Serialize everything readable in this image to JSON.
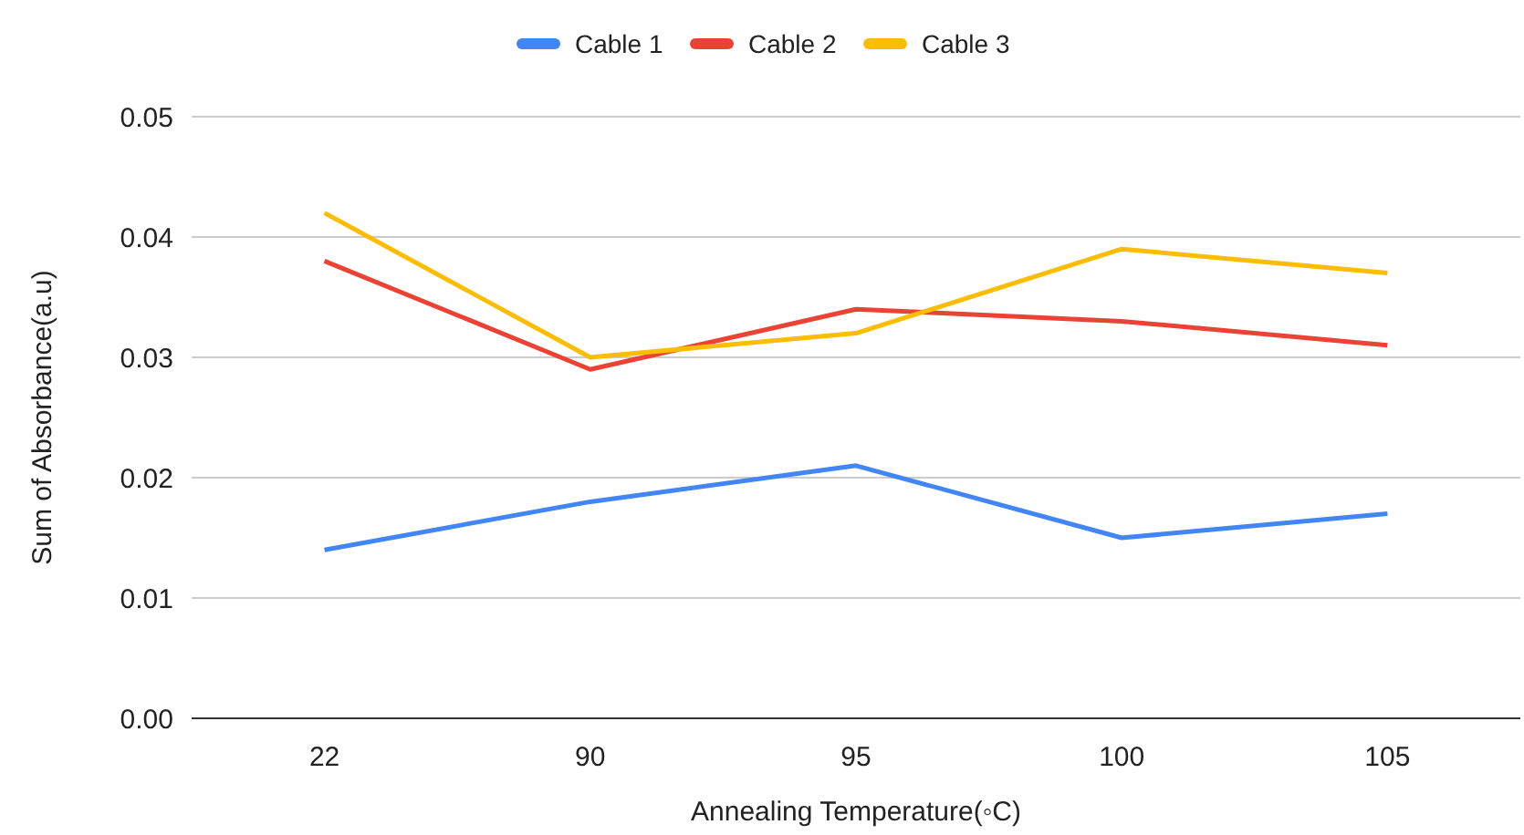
{
  "chart_data": {
    "type": "line",
    "xlabel": "Annealing Temperature(◦C)",
    "ylabel": "Sum of Absorbance(a.u)",
    "categories": [
      "22",
      "90",
      "95",
      "100",
      "105"
    ],
    "series": [
      {
        "name": "Cable 1",
        "color": "#4285f4",
        "values": [
          0.014,
          0.018,
          0.021,
          0.015,
          0.017
        ]
      },
      {
        "name": "Cable 2",
        "color": "#ea4335",
        "values": [
          0.038,
          0.029,
          0.034,
          0.033,
          0.031
        ]
      },
      {
        "name": "Cable 3",
        "color": "#fbbc04",
        "values": [
          0.042,
          0.03,
          0.032,
          0.039,
          0.037
        ]
      }
    ],
    "ylim": [
      0,
      0.05
    ],
    "yticks": [
      {
        "value": 0,
        "label": "0.00"
      },
      {
        "value": 0.01,
        "label": "0.01"
      },
      {
        "value": 0.02,
        "label": "0.02"
      },
      {
        "value": 0.03,
        "label": "0.03"
      },
      {
        "value": 0.04,
        "label": "0.04"
      },
      {
        "value": 0.05,
        "label": "0.05"
      }
    ],
    "grid": "y",
    "legend": "top",
    "marker": "none",
    "line_style": "solid"
  }
}
